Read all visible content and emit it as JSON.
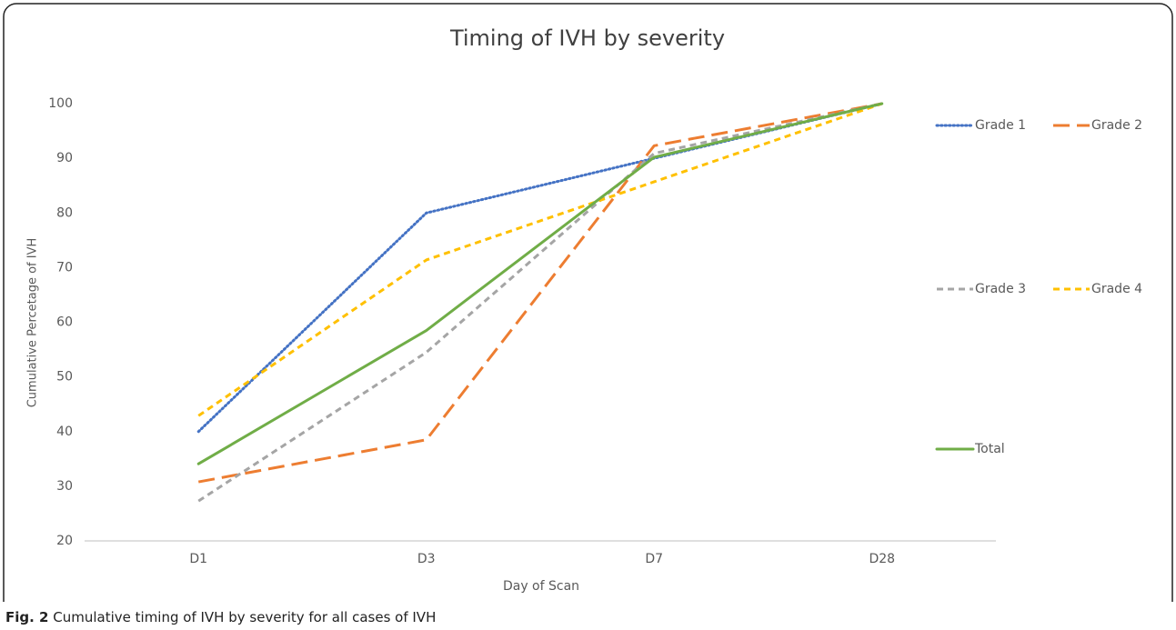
{
  "chart_data": {
    "type": "line",
    "title": "Timing of IVH by severity",
    "x_label": "Day of Scan",
    "y_label": "Cumulative Percetage of IVH",
    "categories": [
      "D1",
      "D3",
      "D7",
      "D28"
    ],
    "series": [
      {
        "name": "Grade 1",
        "color": "#4472c4",
        "dash": "dotted",
        "values": [
          40,
          80,
          90,
          100
        ]
      },
      {
        "name": "Grade 2",
        "color": "#ed7d31",
        "dash": "long-dash",
        "values": [
          30.8,
          38.5,
          92.3,
          100
        ]
      },
      {
        "name": "Grade 3",
        "color": "#a5a5a5",
        "dash": "dashed",
        "values": [
          27.3,
          54.5,
          90.9,
          100
        ]
      },
      {
        "name": "Grade 4",
        "color": "#ffc000",
        "dash": "dashed",
        "values": [
          42.9,
          71.4,
          85.7,
          100
        ]
      },
      {
        "name": "Total",
        "color": "#70ad47",
        "dash": "solid",
        "values": [
          34.1,
          58.5,
          90.2,
          100
        ]
      }
    ],
    "ylim": [
      20,
      100
    ],
    "yticks": [
      20,
      30,
      40,
      50,
      60,
      70,
      80,
      90,
      100
    ],
    "grid": false,
    "legend": "right"
  },
  "caption": {
    "label": "Fig. 2",
    "text": "Cumulative timing of IVH by severity for all cases of IVH"
  }
}
